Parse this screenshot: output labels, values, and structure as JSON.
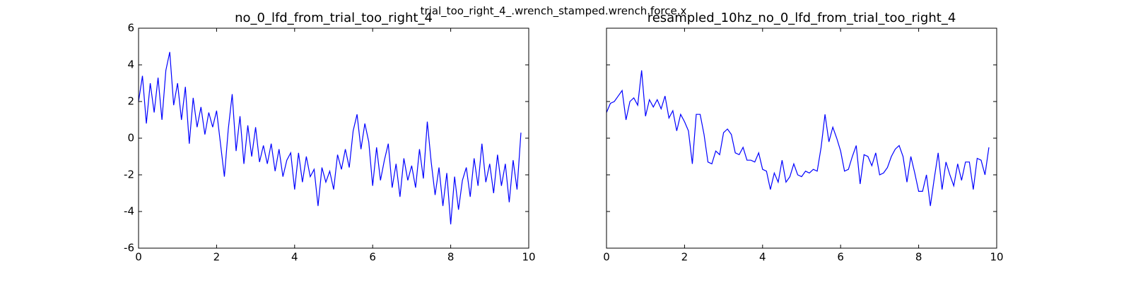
{
  "figure_title": "trial_too_right_4_.wrench_stamped.wrench.force.x",
  "chart_data": [
    {
      "type": "line",
      "title": "no_0_lfd_from_trial_too_right_4",
      "x": [
        0,
        0.1,
        0.2,
        0.3,
        0.4,
        0.5,
        0.6,
        0.7,
        0.8,
        0.9,
        1.0,
        1.1,
        1.2,
        1.3,
        1.4,
        1.5,
        1.6,
        1.7,
        1.8,
        1.9,
        2.0,
        2.1,
        2.2,
        2.3,
        2.4,
        2.5,
        2.6,
        2.7,
        2.8,
        2.9,
        3.0,
        3.1,
        3.2,
        3.3,
        3.4,
        3.5,
        3.6,
        3.7,
        3.8,
        3.9,
        4.0,
        4.1,
        4.2,
        4.3,
        4.4,
        4.5,
        4.6,
        4.7,
        4.8,
        4.9,
        5.0,
        5.1,
        5.2,
        5.3,
        5.4,
        5.5,
        5.6,
        5.7,
        5.8,
        5.9,
        6.0,
        6.1,
        6.2,
        6.3,
        6.4,
        6.5,
        6.6,
        6.7,
        6.8,
        6.9,
        7.0,
        7.1,
        7.2,
        7.3,
        7.4,
        7.5,
        7.6,
        7.7,
        7.8,
        7.9,
        8.0,
        8.1,
        8.2,
        8.3,
        8.4,
        8.5,
        8.6,
        8.7,
        8.8,
        8.9,
        9.0,
        9.1,
        9.2,
        9.3,
        9.4,
        9.5,
        9.6,
        9.7,
        9.8
      ],
      "series": [
        {
          "color": "#0000ff",
          "values": [
            2.0,
            3.4,
            0.8,
            3.0,
            1.4,
            3.3,
            1.0,
            3.7,
            4.7,
            1.8,
            3.0,
            1.0,
            2.8,
            -0.3,
            2.2,
            0.6,
            1.7,
            0.2,
            1.4,
            0.6,
            1.5,
            -0.3,
            -2.1,
            0.5,
            2.4,
            -0.7,
            1.2,
            -1.4,
            0.7,
            -1.0,
            0.6,
            -1.3,
            -0.4,
            -1.4,
            -0.3,
            -1.8,
            -0.6,
            -2.1,
            -1.2,
            -0.8,
            -2.8,
            -0.8,
            -2.4,
            -1.0,
            -2.1,
            -1.7,
            -3.7,
            -1.6,
            -2.4,
            -1.8,
            -2.8,
            -0.9,
            -1.7,
            -0.6,
            -1.6,
            0.4,
            1.3,
            -0.6,
            0.8,
            -0.2,
            -2.6,
            -0.5,
            -2.3,
            -1.2,
            -0.3,
            -2.7,
            -1.4,
            -3.2,
            -1.1,
            -2.3,
            -1.5,
            -2.7,
            -0.6,
            -2.2,
            0.9,
            -1.3,
            -3.1,
            -1.6,
            -3.7,
            -1.9,
            -4.7,
            -2.1,
            -3.9,
            -2.3,
            -1.6,
            -3.2,
            -1.1,
            -2.6,
            -0.3,
            -2.4,
            -1.4,
            -3.0,
            -0.9,
            -2.6,
            -1.4,
            -3.5,
            -1.2,
            -2.8,
            0.3
          ]
        }
      ],
      "xlim": [
        0,
        10
      ],
      "ylim": [
        -6,
        6
      ],
      "xticks": [
        0,
        2,
        4,
        6,
        8,
        10
      ],
      "yticks": [
        -6,
        -4,
        -2,
        0,
        2,
        4,
        6
      ],
      "show_ytick_labels": true
    },
    {
      "type": "line",
      "title": "resampled_10hz_no_0_lfd_from_trial_too_right_4",
      "x": [
        0,
        0.1,
        0.2,
        0.3,
        0.4,
        0.5,
        0.6,
        0.7,
        0.8,
        0.9,
        1.0,
        1.1,
        1.2,
        1.3,
        1.4,
        1.5,
        1.6,
        1.7,
        1.8,
        1.9,
        2.0,
        2.1,
        2.2,
        2.3,
        2.4,
        2.5,
        2.6,
        2.7,
        2.8,
        2.9,
        3.0,
        3.1,
        3.2,
        3.3,
        3.4,
        3.5,
        3.6,
        3.7,
        3.8,
        3.9,
        4.0,
        4.1,
        4.2,
        4.3,
        4.4,
        4.5,
        4.6,
        4.7,
        4.8,
        4.9,
        5.0,
        5.1,
        5.2,
        5.3,
        5.4,
        5.5,
        5.6,
        5.7,
        5.8,
        5.9,
        6.0,
        6.1,
        6.2,
        6.3,
        6.4,
        6.5,
        6.6,
        6.7,
        6.8,
        6.9,
        7.0,
        7.1,
        7.2,
        7.3,
        7.4,
        7.5,
        7.6,
        7.7,
        7.8,
        7.9,
        8.0,
        8.1,
        8.2,
        8.3,
        8.4,
        8.5,
        8.6,
        8.7,
        8.8,
        8.9,
        9.0,
        9.1,
        9.2,
        9.3,
        9.4,
        9.5,
        9.6,
        9.7,
        9.8
      ],
      "series": [
        {
          "color": "#0000ff",
          "values": [
            1.4,
            1.9,
            2.0,
            2.3,
            2.6,
            1.0,
            2.0,
            2.2,
            1.8,
            3.7,
            1.2,
            2.1,
            1.7,
            2.1,
            1.6,
            2.3,
            1.1,
            1.5,
            0.4,
            1.3,
            0.9,
            0.4,
            -1.4,
            1.3,
            1.3,
            0.2,
            -1.3,
            -1.4,
            -0.7,
            -0.9,
            0.3,
            0.5,
            0.2,
            -0.8,
            -0.9,
            -0.5,
            -1.2,
            -1.2,
            -1.3,
            -0.8,
            -1.7,
            -1.8,
            -2.8,
            -1.9,
            -2.4,
            -1.2,
            -2.4,
            -2.1,
            -1.4,
            -2.0,
            -2.1,
            -1.8,
            -1.9,
            -1.7,
            -1.8,
            -0.5,
            1.3,
            -0.2,
            0.6,
            0.0,
            -0.7,
            -1.8,
            -1.7,
            -1.0,
            -0.4,
            -2.5,
            -0.9,
            -1.0,
            -1.5,
            -0.8,
            -2.0,
            -1.9,
            -1.6,
            -1.0,
            -0.6,
            -0.4,
            -1.0,
            -2.4,
            -1.0,
            -1.9,
            -2.9,
            -2.9,
            -2.0,
            -3.7,
            -2.2,
            -0.8,
            -2.8,
            -1.3,
            -2.0,
            -2.6,
            -1.4,
            -2.3,
            -1.3,
            -1.3,
            -2.8,
            -1.1,
            -1.2,
            -2.0,
            -0.5
          ]
        }
      ],
      "xlim": [
        0,
        10
      ],
      "ylim": [
        -6,
        6
      ],
      "xticks": [
        0,
        2,
        4,
        6,
        8,
        10
      ],
      "yticks": [
        -6,
        -4,
        -2,
        0,
        2,
        4,
        6
      ],
      "show_ytick_labels": false
    }
  ]
}
